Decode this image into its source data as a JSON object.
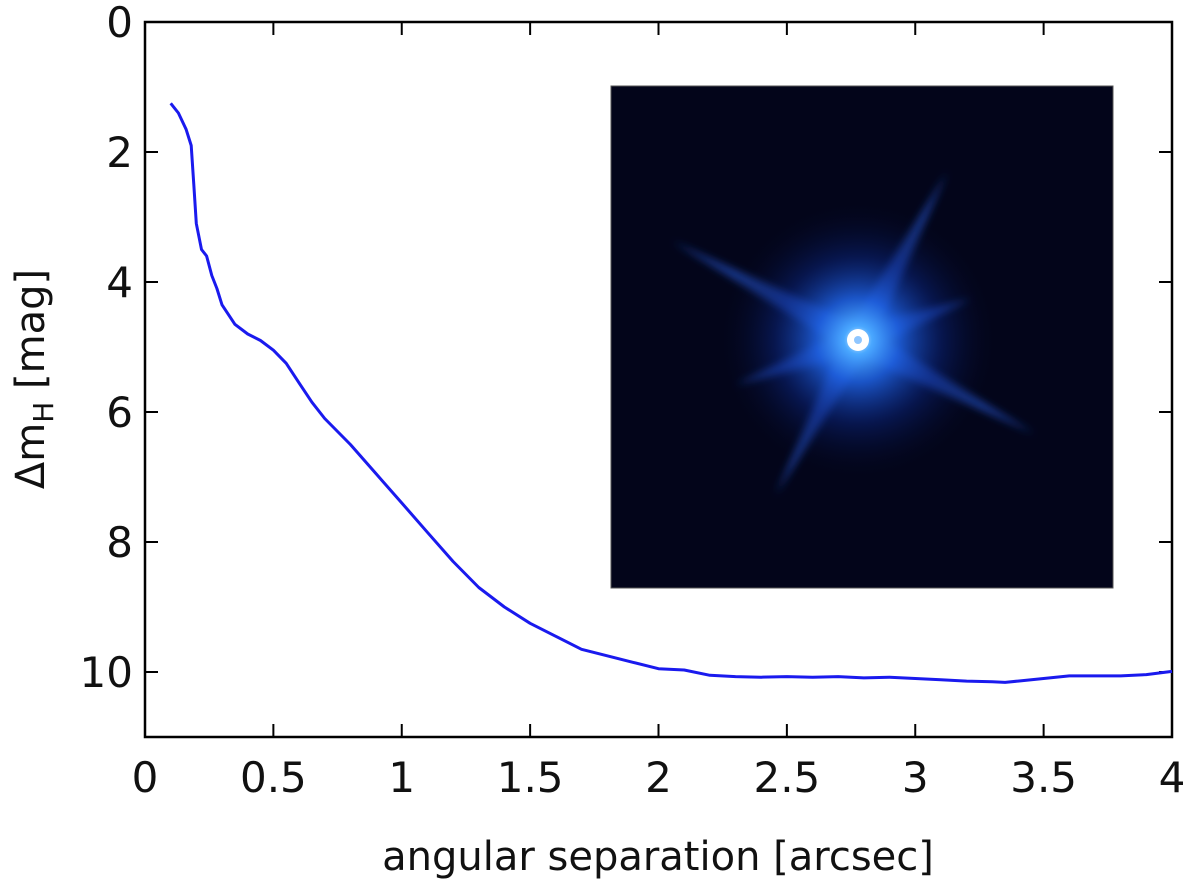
{
  "chart_data": {
    "type": "line",
    "xlabel": "angular separation [arcsec]",
    "ylabel": {
      "prefix": "Δm",
      "subscript": "H",
      "suffix": " [mag]"
    },
    "xlim": [
      0,
      4
    ],
    "ylim": [
      11,
      0
    ],
    "y_axis_inverted": true,
    "grid": false,
    "x_ticks": [
      "0",
      "0.5",
      "1",
      "1.5",
      "2",
      "2.5",
      "3",
      "3.5",
      "4"
    ],
    "y_ticks": [
      "0",
      "2",
      "4",
      "6",
      "8",
      "10"
    ],
    "series": [
      {
        "color": "#1a1aee",
        "x": [
          0.1,
          0.13,
          0.16,
          0.18,
          0.19,
          0.2,
          0.22,
          0.24,
          0.26,
          0.28,
          0.3,
          0.35,
          0.4,
          0.45,
          0.5,
          0.55,
          0.6,
          0.65,
          0.7,
          0.8,
          0.9,
          1.0,
          1.1,
          1.2,
          1.3,
          1.4,
          1.5,
          1.6,
          1.7,
          1.8,
          1.9,
          2.0,
          2.1,
          2.2,
          2.3,
          2.4,
          2.5,
          2.6,
          2.7,
          2.8,
          2.9,
          3.0,
          3.1,
          3.2,
          3.3,
          3.35,
          3.4,
          3.5,
          3.6,
          3.7,
          3.8,
          3.9,
          4.0
        ],
        "y": [
          1.25,
          1.4,
          1.65,
          1.9,
          2.5,
          3.1,
          3.5,
          3.6,
          3.9,
          4.1,
          4.35,
          4.65,
          4.8,
          4.9,
          5.05,
          5.25,
          5.55,
          5.85,
          6.1,
          6.5,
          6.95,
          7.4,
          7.85,
          8.3,
          8.7,
          9.0,
          9.25,
          9.45,
          9.65,
          9.75,
          9.85,
          9.95,
          9.97,
          10.05,
          10.07,
          10.08,
          10.07,
          10.08,
          10.07,
          10.09,
          10.08,
          10.1,
          10.12,
          10.14,
          10.15,
          10.16,
          10.14,
          10.1,
          10.06,
          10.06,
          10.06,
          10.04,
          9.99
        ]
      }
    ],
    "inset": {
      "kind": "psf-image",
      "background": "#03051a",
      "glow_color": "#2f7fff",
      "core_color": "#ffffff"
    }
  }
}
